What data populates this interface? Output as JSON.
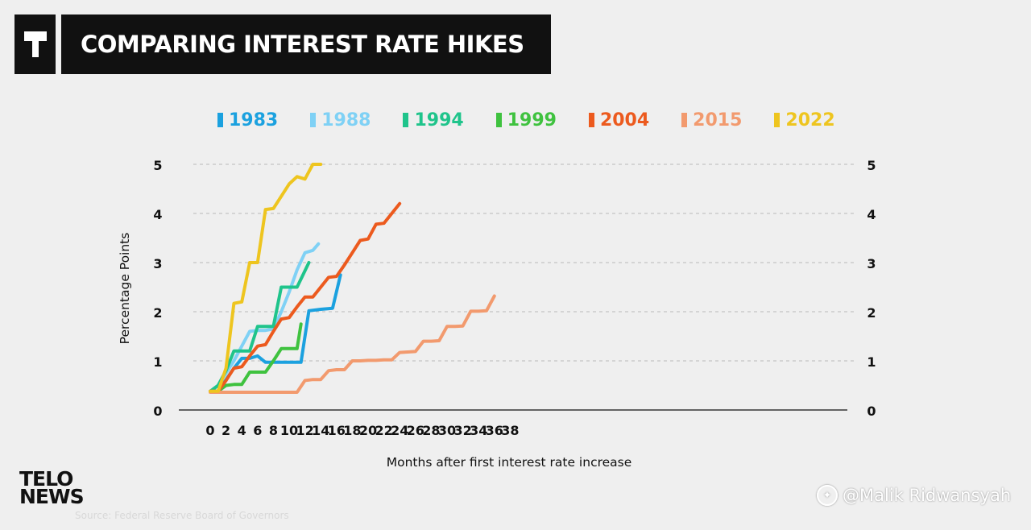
{
  "header": {
    "title": "COMPARING INTEREST RATE HIKES"
  },
  "brand": {
    "line1": "TELO",
    "line2": "NEWS"
  },
  "source": "Source: Federal Reserve Board of Governors",
  "watermark": {
    "text": "@Malik Ridwansyah",
    "icon": "weibo-icon"
  },
  "chart_data": {
    "type": "line",
    "title": "COMPARING INTEREST RATE HIKES",
    "xlabel": "Months after first interest rate increase",
    "ylabel": "Percentage Points",
    "xlim": [
      0,
      40
    ],
    "ylim": [
      0,
      5
    ],
    "x_ticks": [
      "0",
      "2",
      "4",
      "6",
      "8",
      "10",
      "12",
      "14",
      "16",
      "18",
      "20",
      "22",
      "24",
      "26",
      "28",
      "30",
      "32",
      "34",
      "36",
      "38"
    ],
    "y_ticks": [
      "0",
      "1",
      "2",
      "3",
      "4",
      "5"
    ],
    "grid": "horizontal dashed",
    "legend_position": "top",
    "series": [
      {
        "name": "1983",
        "color": "#1ba1df",
        "x": [
          0,
          1,
          3,
          4,
          5,
          6,
          7,
          8,
          9,
          10,
          11,
          11.5,
          12.5,
          14,
          15.5,
          16.5
        ],
        "y": [
          0.38,
          0.38,
          0.85,
          1.05,
          1.05,
          1.1,
          0.97,
          0.97,
          0.97,
          0.97,
          0.97,
          0.97,
          2.02,
          2.05,
          2.07,
          2.75
        ]
      },
      {
        "name": "1988",
        "color": "#7fd1f5",
        "x": [
          0,
          1,
          2,
          3,
          4,
          5,
          6,
          7,
          8,
          9,
          10,
          11,
          12,
          13,
          13.7
        ],
        "y": [
          0.38,
          0.5,
          0.75,
          1.0,
          1.3,
          1.6,
          1.62,
          1.62,
          1.65,
          2.0,
          2.4,
          2.85,
          3.2,
          3.25,
          3.38
        ]
      },
      {
        "name": "1994",
        "color": "#1fc48b",
        "x": [
          0,
          1,
          2,
          3,
          4,
          5,
          6,
          7,
          8,
          9,
          10,
          11,
          12.5
        ],
        "y": [
          0.38,
          0.5,
          0.8,
          1.2,
          1.2,
          1.2,
          1.7,
          1.7,
          1.7,
          2.5,
          2.5,
          2.5,
          3.0
        ]
      },
      {
        "name": "1999",
        "color": "#3fc23f",
        "x": [
          0,
          1,
          2,
          3,
          4,
          5,
          6,
          7,
          8,
          9,
          10,
          11,
          11.5
        ],
        "y": [
          0.38,
          0.38,
          0.5,
          0.52,
          0.52,
          0.77,
          0.77,
          0.77,
          1.0,
          1.25,
          1.25,
          1.25,
          1.75
        ]
      },
      {
        "name": "2004",
        "color": "#ec5a1e",
        "x": [
          0,
          1,
          2,
          3,
          4,
          5,
          6,
          7,
          8,
          9,
          10,
          11,
          12,
          13,
          14,
          15,
          16,
          17,
          18,
          19,
          20,
          21,
          22,
          23,
          24
        ],
        "y": [
          0.38,
          0.38,
          0.6,
          0.85,
          0.88,
          1.1,
          1.3,
          1.33,
          1.6,
          1.85,
          1.88,
          2.1,
          2.3,
          2.3,
          2.5,
          2.7,
          2.72,
          2.95,
          3.2,
          3.45,
          3.48,
          3.78,
          3.8,
          4.0,
          4.2
        ]
      },
      {
        "name": "2015",
        "color": "#f29a6e",
        "x": [
          0,
          1,
          2,
          3,
          4,
          5,
          6,
          7,
          8,
          9,
          10,
          11,
          12,
          13,
          14,
          15,
          16,
          17,
          18,
          19,
          20,
          21,
          22,
          23,
          24,
          25,
          26,
          27,
          28,
          29,
          30,
          31,
          32,
          33,
          34,
          35,
          36
        ],
        "y": [
          0.36,
          0.36,
          0.36,
          0.36,
          0.36,
          0.36,
          0.36,
          0.36,
          0.36,
          0.36,
          0.36,
          0.36,
          0.6,
          0.62,
          0.62,
          0.8,
          0.82,
          0.82,
          1.0,
          1.0,
          1.01,
          1.01,
          1.02,
          1.02,
          1.17,
          1.18,
          1.19,
          1.4,
          1.4,
          1.41,
          1.7,
          1.7,
          1.71,
          2.01,
          2.01,
          2.02,
          2.32
        ]
      },
      {
        "name": "2022",
        "color": "#eec51f",
        "x": [
          0,
          1,
          2,
          3,
          4,
          5,
          6,
          7,
          8,
          9,
          10,
          11,
          12,
          13,
          14
        ],
        "y": [
          0.38,
          0.38,
          0.85,
          2.17,
          2.2,
          3.0,
          3.0,
          4.08,
          4.1,
          4.35,
          4.6,
          4.75,
          4.7,
          5.0,
          5.0
        ]
      }
    ]
  }
}
